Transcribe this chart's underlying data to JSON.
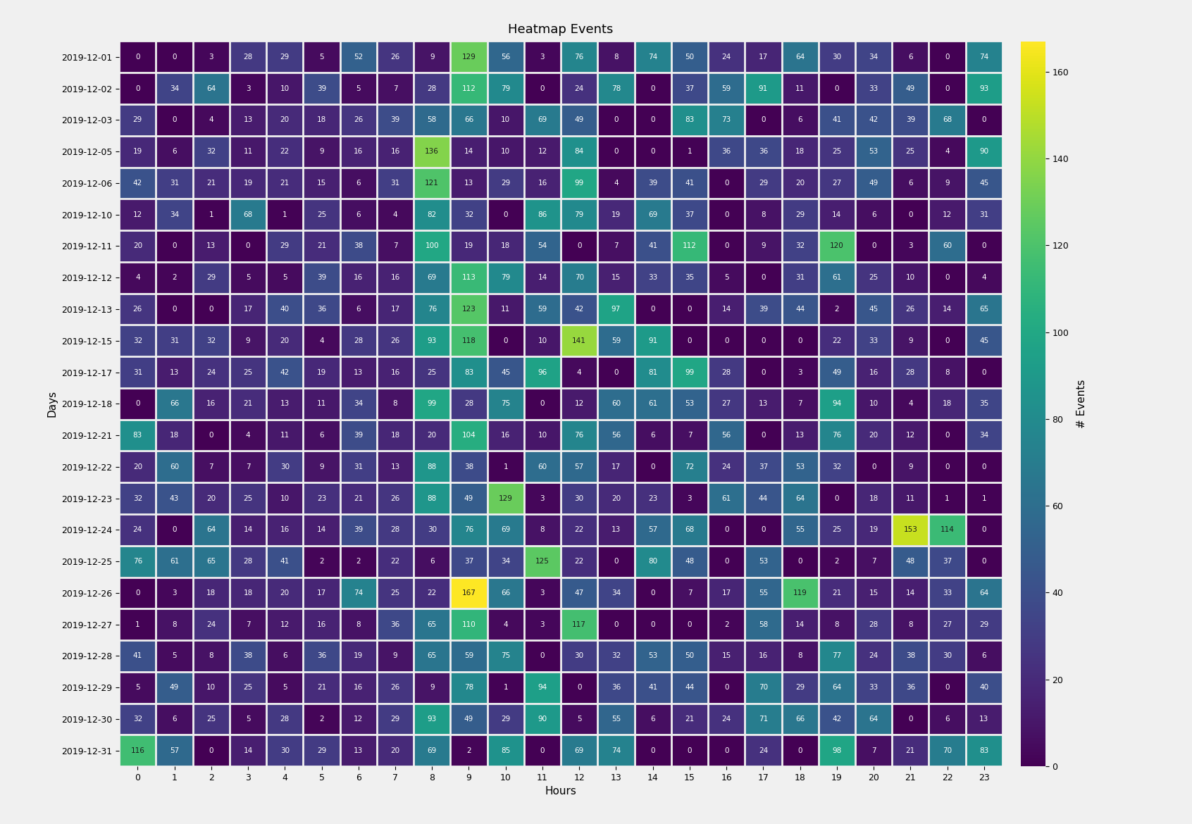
{
  "title": "Heatmap Events",
  "xlabel": "Hours",
  "ylabel": "Days",
  "colorbar_label": "# Events",
  "days": [
    "2019-12-01",
    "2019-12-02",
    "2019-12-03",
    "2019-12-05",
    "2019-12-06",
    "2019-12-10",
    "2019-12-11",
    "2019-12-12",
    "2019-12-13",
    "2019-12-15",
    "2019-12-17",
    "2019-12-18",
    "2019-12-21",
    "2019-12-22",
    "2019-12-23",
    "2019-12-24",
    "2019-12-25",
    "2019-12-26",
    "2019-12-27",
    "2019-12-28",
    "2019-12-29",
    "2019-12-30",
    "2019-12-31"
  ],
  "hours": [
    0,
    1,
    2,
    3,
    4,
    5,
    6,
    7,
    8,
    9,
    10,
    11,
    12,
    13,
    14,
    15,
    16,
    17,
    18,
    19,
    20,
    21,
    22,
    23
  ],
  "data": [
    [
      0,
      0,
      3,
      28,
      29,
      5,
      52,
      26,
      9,
      129,
      56,
      3,
      76,
      8,
      74,
      50,
      24,
      17,
      64,
      30,
      34,
      6,
      0,
      74
    ],
    [
      0,
      34,
      64,
      3,
      10,
      39,
      5,
      7,
      28,
      112,
      79,
      0,
      24,
      78,
      0,
      37,
      59,
      91,
      11,
      0,
      33,
      49,
      0,
      93
    ],
    [
      29,
      0,
      4,
      13,
      20,
      18,
      26,
      39,
      58,
      66,
      10,
      69,
      49,
      0,
      0,
      83,
      73,
      0,
      6,
      41,
      42,
      39,
      68,
      0
    ],
    [
      19,
      6,
      32,
      11,
      22,
      9,
      16,
      16,
      136,
      14,
      10,
      12,
      84,
      0,
      0,
      1,
      36,
      36,
      18,
      25,
      53,
      25,
      4,
      90
    ],
    [
      42,
      31,
      21,
      19,
      21,
      15,
      6,
      31,
      121,
      13,
      29,
      16,
      99,
      4,
      39,
      41,
      0,
      29,
      20,
      27,
      49,
      6,
      9,
      45
    ],
    [
      12,
      34,
      1,
      68,
      1,
      25,
      6,
      4,
      82,
      32,
      0,
      86,
      79,
      19,
      69,
      37,
      0,
      8,
      29,
      14,
      6,
      0,
      12,
      31
    ],
    [
      20,
      0,
      13,
      0,
      29,
      21,
      38,
      7,
      100,
      19,
      18,
      54,
      0,
      7,
      41,
      112,
      0,
      9,
      32,
      120,
      0,
      3,
      60,
      0
    ],
    [
      4,
      2,
      29,
      5,
      5,
      39,
      16,
      16,
      69,
      113,
      79,
      14,
      70,
      15,
      33,
      35,
      5,
      0,
      31,
      61,
      25,
      10,
      0,
      4
    ],
    [
      26,
      0,
      0,
      17,
      40,
      36,
      6,
      17,
      76,
      123,
      11,
      59,
      42,
      97,
      0,
      0,
      14,
      39,
      44,
      2,
      45,
      26,
      14,
      65
    ],
    [
      32,
      31,
      32,
      9,
      20,
      4,
      28,
      26,
      93,
      118,
      0,
      10,
      141,
      59,
      91,
      0,
      0,
      0,
      0,
      22,
      33,
      9,
      0,
      45
    ],
    [
      31,
      13,
      24,
      25,
      42,
      19,
      13,
      16,
      25,
      83,
      45,
      96,
      4,
      0,
      81,
      99,
      28,
      0,
      3,
      49,
      16,
      28,
      8,
      0
    ],
    [
      0,
      66,
      16,
      21,
      13,
      11,
      34,
      8,
      99,
      28,
      75,
      0,
      12,
      60,
      61,
      53,
      27,
      13,
      7,
      94,
      10,
      4,
      18,
      35
    ],
    [
      83,
      18,
      0,
      4,
      11,
      6,
      39,
      18,
      20,
      104,
      16,
      10,
      76,
      56,
      6,
      7,
      56,
      0,
      13,
      76,
      20,
      12,
      0,
      34
    ],
    [
      20,
      60,
      7,
      7,
      30,
      9,
      31,
      13,
      88,
      38,
      1,
      60,
      57,
      17,
      0,
      72,
      24,
      37,
      53,
      32,
      0,
      9,
      0,
      0
    ],
    [
      32,
      43,
      20,
      25,
      10,
      23,
      21,
      26,
      88,
      49,
      129,
      3,
      30,
      20,
      23,
      3,
      61,
      44,
      64,
      0,
      18,
      11,
      1,
      1
    ],
    [
      24,
      0,
      64,
      14,
      16,
      14,
      39,
      28,
      30,
      76,
      69,
      8,
      22,
      13,
      57,
      68,
      0,
      0,
      55,
      25,
      19,
      153,
      114,
      0
    ],
    [
      76,
      61,
      65,
      28,
      41,
      2,
      2,
      22,
      6,
      37,
      34,
      125,
      22,
      0,
      80,
      48,
      0,
      53,
      0,
      2,
      7,
      48,
      37,
      0
    ],
    [
      0,
      3,
      18,
      18,
      20,
      17,
      74,
      25,
      22,
      167,
      66,
      3,
      47,
      34,
      0,
      7,
      17,
      55,
      119,
      21,
      15,
      14,
      33,
      64
    ],
    [
      1,
      8,
      24,
      7,
      12,
      16,
      8,
      36,
      65,
      110,
      4,
      3,
      117,
      0,
      0,
      0,
      2,
      58,
      14,
      8,
      28,
      8,
      27,
      29
    ],
    [
      41,
      5,
      8,
      38,
      6,
      36,
      19,
      9,
      65,
      59,
      75,
      0,
      30,
      32,
      53,
      50,
      15,
      16,
      8,
      77,
      24,
      38,
      30,
      6
    ],
    [
      5,
      49,
      10,
      25,
      5,
      21,
      16,
      26,
      9,
      78,
      1,
      94,
      0,
      36,
      41,
      44,
      0,
      70,
      29,
      64,
      33,
      36,
      0,
      40
    ],
    [
      32,
      6,
      25,
      5,
      28,
      2,
      12,
      29,
      93,
      49,
      29,
      90,
      5,
      55,
      6,
      21,
      24,
      71,
      66,
      42,
      64,
      0,
      6,
      13
    ],
    [
      116,
      57,
      0,
      14,
      30,
      29,
      13,
      20,
      69,
      2,
      85,
      0,
      69,
      74,
      0,
      0,
      0,
      24,
      0,
      98,
      7,
      21,
      70,
      83
    ]
  ],
  "vmin": 0,
  "vmax": 167,
  "colormap": "viridis",
  "background_color": "#f0f0f0",
  "title_fontsize": 13,
  "axis_label_fontsize": 11,
  "tick_fontsize": 9,
  "cell_text_fontsize": 7.5,
  "colorbar_ticks": [
    0,
    20,
    40,
    60,
    80,
    100,
    120,
    140,
    160
  ]
}
